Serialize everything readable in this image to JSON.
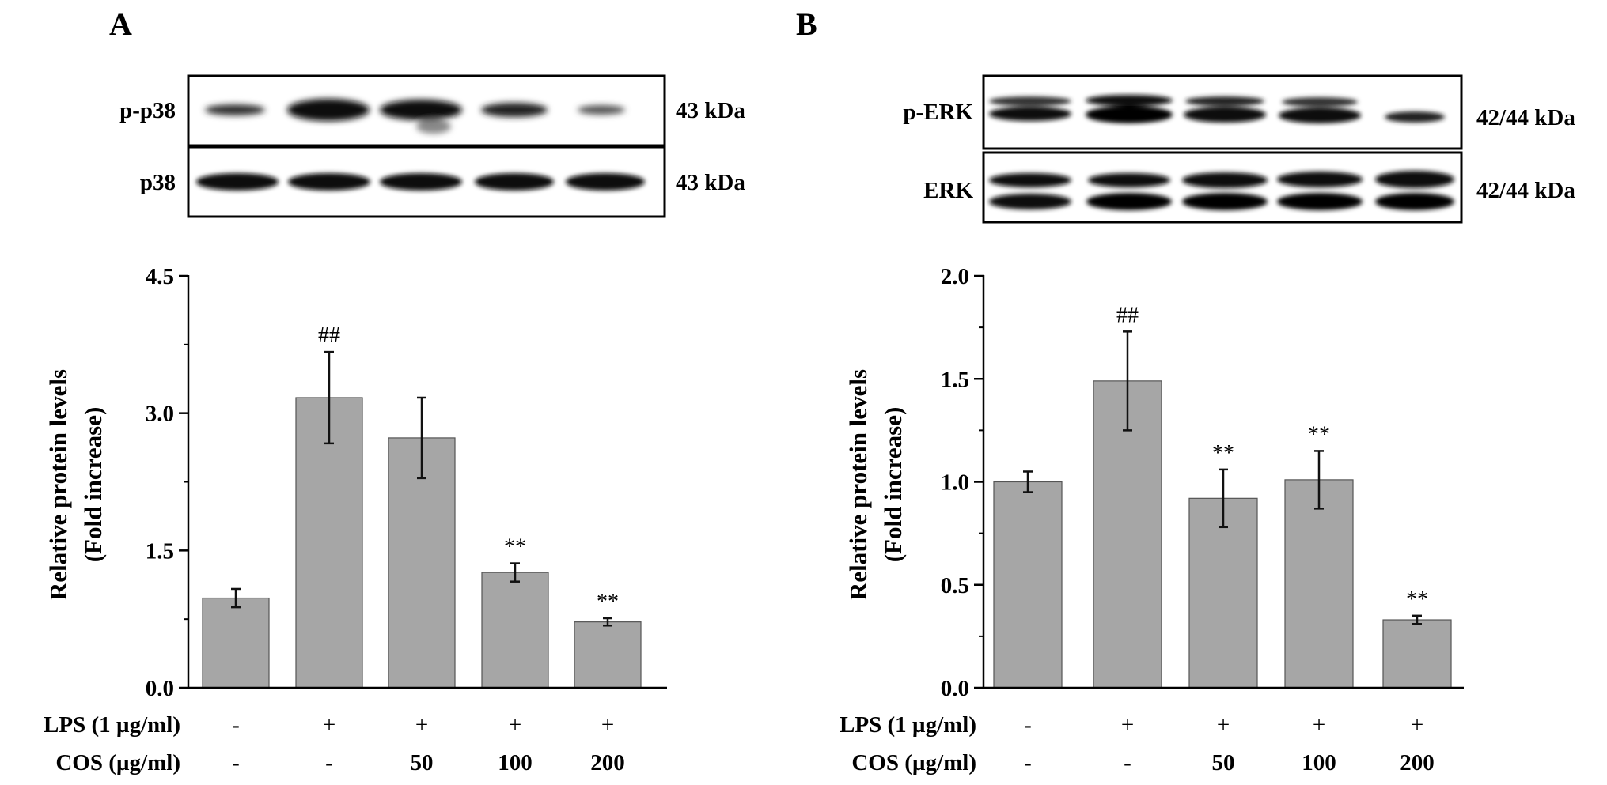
{
  "panels": [
    {
      "letter": "A",
      "blots": [
        {
          "label": "p-p38",
          "size": "43 kDa"
        },
        {
          "label": "p38",
          "size": "43 kDa"
        }
      ],
      "chart_data": {
        "type": "bar",
        "categories": [
          "1",
          "2",
          "3",
          "4",
          "5"
        ],
        "values": [
          0.98,
          3.17,
          2.73,
          1.26,
          0.72
        ],
        "errors": [
          0.1,
          0.5,
          0.44,
          0.1,
          0.04
        ],
        "annotations": [
          "",
          "##",
          "",
          "**",
          "**"
        ],
        "ylabel": "Relative protein levels",
        "ylabel2": "(Fold increase)",
        "ylim": [
          0,
          4.5
        ],
        "yticks": [
          "0.0",
          "1.5",
          "3.0",
          "4.5"
        ],
        "ytick_values": [
          0,
          1.5,
          3.0,
          4.5
        ],
        "bar_color": "#a6a6a6"
      },
      "conditions": [
        {
          "label": "LPS (1 µg/ml)",
          "values": [
            "-",
            "+",
            "+",
            "+",
            "+"
          ]
        },
        {
          "label": "COS (µg/ml)",
          "values": [
            "-",
            "-",
            "50",
            "100",
            "200"
          ]
        }
      ]
    },
    {
      "letter": "B",
      "blots": [
        {
          "label": "p-ERK",
          "size": "42/44 kDa"
        },
        {
          "label": "ERK",
          "size": "42/44 kDa"
        }
      ],
      "chart_data": {
        "type": "bar",
        "categories": [
          "1",
          "2",
          "3",
          "4",
          "5"
        ],
        "values": [
          1.0,
          1.49,
          0.92,
          1.01,
          0.33
        ],
        "errors": [
          0.05,
          0.24,
          0.14,
          0.14,
          0.02
        ],
        "annotations": [
          "",
          "##",
          "**",
          "**",
          "**"
        ],
        "ylabel": "Relative protein levels",
        "ylabel2": "(Fold increase)",
        "ylim": [
          0,
          2.0
        ],
        "yticks": [
          "0.0",
          "0.5",
          "1.0",
          "1.5",
          "2.0"
        ],
        "ytick_values": [
          0,
          0.5,
          1.0,
          1.5,
          2.0
        ],
        "bar_color": "#a6a6a6"
      },
      "conditions": [
        {
          "label": "LPS (1 µg/ml)",
          "values": [
            "-",
            "+",
            "+",
            "+",
            "+"
          ]
        },
        {
          "label": "COS (µg/ml)",
          "values": [
            "-",
            "-",
            "50",
            "100",
            "200"
          ]
        }
      ]
    }
  ]
}
